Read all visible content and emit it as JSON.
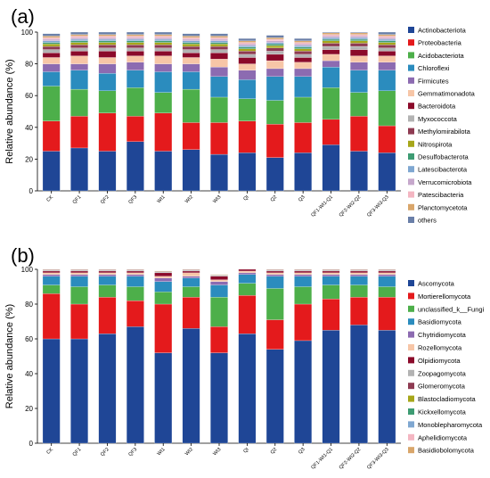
{
  "panel_labels": [
    "(a)",
    "(b)"
  ],
  "chart_data": [
    {
      "type": "bar",
      "stacked": true,
      "ylabel": "Relative abundance (%)",
      "ylim": [
        0,
        100
      ],
      "yticks": [
        0,
        20,
        40,
        60,
        80,
        100
      ],
      "legend_position": "right",
      "categories": [
        "CK",
        "QF1",
        "QF2",
        "QF3",
        "WI1",
        "WI2",
        "WI3",
        "QI",
        "Q2",
        "Q3",
        "QF1-WI1-Q1",
        "QF2-WI2-Q2",
        "QF3-WI3-Q3"
      ],
      "series": [
        {
          "name": "Actinobacteriota",
          "color": "#1f4696",
          "values": [
            25,
            27,
            25,
            31,
            25,
            26,
            23,
            24,
            21,
            24,
            29,
            25,
            24
          ]
        },
        {
          "name": "Proteobacteria",
          "color": "#e41a1c",
          "values": [
            19,
            20,
            24,
            16,
            24,
            17,
            20,
            20,
            21,
            19,
            16,
            22,
            17
          ]
        },
        {
          "name": "Acidobacteriota",
          "color": "#4daf4a",
          "values": [
            22,
            17,
            14,
            18,
            13,
            21,
            16,
            14,
            15,
            16,
            20,
            15,
            22
          ]
        },
        {
          "name": "Chloroflexi",
          "color": "#2b8cbe",
          "values": [
            9,
            12,
            11,
            11,
            13,
            11,
            13,
            12,
            15,
            13,
            13,
            14,
            13
          ]
        },
        {
          "name": "Firmicutes",
          "color": "#8c6bb1",
          "values": [
            5,
            4,
            6,
            5,
            5,
            5,
            6,
            6,
            5,
            5,
            4,
            5,
            5
          ]
        },
        {
          "name": "Gemmatimonadota",
          "color": "#f7c6a7",
          "values": [
            4,
            5,
            4,
            4,
            5,
            4,
            5,
            4,
            5,
            4,
            4,
            4,
            4
          ]
        },
        {
          "name": "Bacteroidota",
          "color": "#8b0a2a",
          "values": [
            3,
            3,
            4,
            3,
            3,
            3,
            4,
            4,
            4,
            3,
            3,
            4,
            3
          ]
        },
        {
          "name": "Myxococcota",
          "color": "#b3b3b3",
          "values": [
            2,
            2,
            2,
            2,
            2,
            2,
            2,
            2,
            2,
            2,
            2,
            2,
            2
          ]
        },
        {
          "name": "Methylomirabilota",
          "color": "#8e3b52",
          "values": [
            2,
            2,
            2,
            2,
            2,
            2,
            2,
            2,
            2,
            2,
            2,
            2,
            2
          ]
        },
        {
          "name": "Nitrospirota",
          "color": "#a6a61a",
          "values": [
            1.5,
            1.5,
            1.5,
            1.5,
            1.5,
            1.5,
            1.5,
            1.5,
            1.5,
            1.5,
            1.5,
            1.5,
            1.5
          ]
        },
        {
          "name": "Desulfobacterota",
          "color": "#3e9c73",
          "values": [
            1,
            1,
            1,
            1,
            1,
            1,
            1,
            1,
            1,
            1,
            1,
            1,
            1
          ]
        },
        {
          "name": "Latescibacterota",
          "color": "#7fa7d1",
          "values": [
            1,
            1,
            1,
            1,
            1,
            1,
            1,
            1,
            1,
            1,
            1,
            1,
            1
          ]
        },
        {
          "name": "Verrucomicrobiota",
          "color": "#c6a8cc",
          "values": [
            1,
            1,
            1,
            1,
            1,
            1,
            1,
            1,
            1,
            1,
            1,
            1,
            1
          ]
        },
        {
          "name": "Patescibacteria",
          "color": "#f4b6c2",
          "values": [
            1,
            1,
            1,
            1,
            1,
            1,
            1,
            1,
            1,
            1,
            1,
            1,
            1
          ]
        },
        {
          "name": "Planctomycetota",
          "color": "#d9a66b",
          "values": [
            1,
            1,
            1,
            1,
            1,
            1,
            1,
            1,
            1,
            1,
            1,
            1,
            1
          ]
        },
        {
          "name": "others",
          "color": "#6a7fa8",
          "values": [
            1.5,
            1.5,
            1.5,
            1.5,
            1.5,
            1.5,
            1.5,
            1.5,
            1.5,
            1.5,
            1.5,
            1.5,
            1.5
          ]
        }
      ]
    },
    {
      "type": "bar",
      "stacked": true,
      "ylabel": "Relative abundance (%)",
      "ylim": [
        0,
        100
      ],
      "yticks": [
        0,
        20,
        40,
        60,
        80,
        100
      ],
      "legend_position": "right",
      "categories": [
        "CK",
        "QF1",
        "QF2",
        "QF3",
        "WI1",
        "WI2",
        "WI3",
        "QI",
        "Q2",
        "Q3",
        "QF1-WI1-Q1",
        "QF2-WI2-Q2",
        "QF3-WI3-Q3"
      ],
      "series": [
        {
          "name": "Ascomycota",
          "color": "#1f4696",
          "values": [
            60,
            60,
            63,
            67,
            52,
            66,
            52,
            63,
            54,
            59,
            65,
            68,
            65
          ]
        },
        {
          "name": "Mortierellomycota",
          "color": "#e41a1c",
          "values": [
            26,
            20,
            21,
            15,
            28,
            18,
            15,
            22,
            17,
            21,
            18,
            16,
            19
          ]
        },
        {
          "name": "unclassified_k__Fungi",
          "color": "#4daf4a",
          "values": [
            5,
            10,
            7,
            8,
            7,
            6,
            17,
            7,
            18,
            10,
            8,
            7,
            6
          ]
        },
        {
          "name": "Basidiomycota",
          "color": "#2b8cbe",
          "values": [
            5,
            6,
            5,
            6,
            6,
            5,
            7,
            5,
            7,
            6,
            5,
            5,
            6
          ]
        },
        {
          "name": "Chytridiomycota",
          "color": "#8c6bb1",
          "values": [
            1,
            1,
            1,
            1,
            2,
            1,
            2,
            1,
            1,
            1,
            1,
            1,
            1
          ]
        },
        {
          "name": "Rozellomycota",
          "color": "#f7c6a7",
          "values": [
            1,
            1,
            1,
            1,
            1,
            2,
            1,
            1,
            1,
            1,
            1,
            1,
            1
          ]
        },
        {
          "name": "Olpidiomycota",
          "color": "#8b0a2a",
          "values": [
            1,
            1,
            1,
            1,
            2,
            1,
            2,
            1,
            1,
            1,
            1,
            1,
            1
          ]
        },
        {
          "name": "Zoopagomycota",
          "color": "#b3b3b3",
          "values": [
            0.5,
            0.5,
            0.5,
            0.5,
            0.5,
            0.5,
            0.5,
            0.5,
            0.5,
            0.5,
            0.5,
            0.5,
            0.5
          ]
        },
        {
          "name": "Glomeromycota",
          "color": "#8e3b52",
          "values": [
            0.3,
            0.3,
            0.3,
            0.3,
            0.3,
            0.3,
            0.3,
            0.3,
            0.3,
            0.3,
            0.3,
            0.3,
            0.3
          ]
        },
        {
          "name": "Blastocladiomycota",
          "color": "#a6a61a",
          "values": [
            0.2,
            0.2,
            0.2,
            0.2,
            0.2,
            0.2,
            0.2,
            0.2,
            0.2,
            0.2,
            0.2,
            0.2,
            0.2
          ]
        },
        {
          "name": "Kickxellomycota",
          "color": "#3e9c73",
          "values": [
            0,
            0,
            0,
            0,
            0,
            0,
            0,
            0,
            0,
            0,
            0,
            0,
            0
          ]
        },
        {
          "name": "Monoblepharomycota",
          "color": "#7fa7d1",
          "values": [
            0,
            0,
            0,
            0,
            0,
            0,
            0,
            0,
            0,
            0,
            0,
            0,
            0
          ]
        },
        {
          "name": "Aphelidiomycota",
          "color": "#f4b6c2",
          "values": [
            0,
            0,
            0,
            0,
            0,
            0,
            0,
            0,
            0,
            0,
            0,
            0,
            0
          ]
        },
        {
          "name": "Basidiobolomycota",
          "color": "#d9a66b",
          "values": [
            0,
            0,
            0,
            0,
            0,
            0,
            0,
            0,
            0,
            0,
            0,
            0,
            0
          ]
        }
      ]
    }
  ]
}
